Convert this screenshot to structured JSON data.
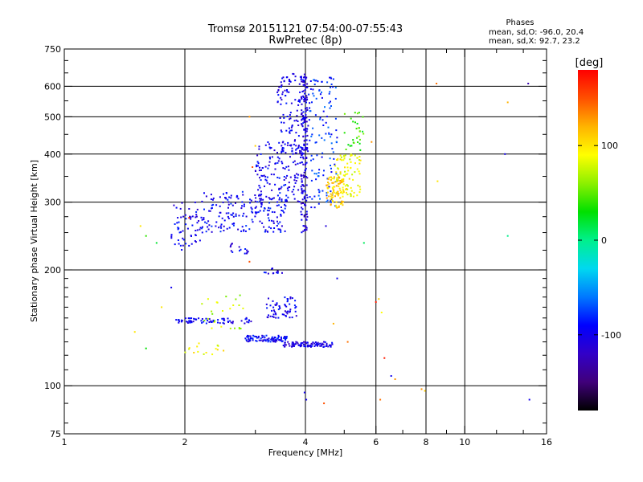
{
  "chart_data": {
    "type": "scatter",
    "title": "Tromsø 20151121 07:54:00-07:55:43",
    "subtitle": "RwPretec (8p)",
    "stats": {
      "heading": "Phases",
      "line_o": "mean, sd,O: -96.0, 20.4",
      "line_x": "mean, sd,X:  92.7, 23.2"
    },
    "xlabel": "Frequency [MHz]",
    "ylabel": "Stationary phase Virtual Height [km]",
    "x_scale": "log",
    "y_scale": "log",
    "xlim": [
      1,
      16
    ],
    "ylim": [
      75,
      750
    ],
    "grid": true,
    "x_major_ticks": [
      1,
      2,
      4,
      6,
      8,
      10,
      16
    ],
    "x_major_labels": [
      "1",
      "2",
      "4",
      "6",
      "8",
      "10",
      "16"
    ],
    "x_minor_ticks": [
      3,
      5,
      7,
      9,
      12,
      14
    ],
    "y_major_ticks": [
      75,
      100,
      200,
      300,
      400,
      500,
      600,
      750
    ],
    "y_major_labels": [
      "75",
      "100",
      "200",
      "300",
      "400",
      "500",
      "600",
      "750"
    ],
    "y_minor_ticks": [
      80,
      90,
      110,
      120,
      130,
      140,
      150,
      160,
      170,
      180,
      190,
      225,
      250,
      275,
      350,
      450,
      550,
      650,
      700
    ],
    "colorbar": {
      "label": "[deg]",
      "range": [
        -180,
        180
      ],
      "ticks": [
        100,
        0,
        -100
      ],
      "tick_labels": [
        "100",
        "0",
        "-100"
      ],
      "colormap": [
        "#000000",
        "#40007a",
        "#3200c8",
        "#0000ff",
        "#0078ff",
        "#00d8f0",
        "#00f08c",
        "#00e000",
        "#8cf000",
        "#ffff00",
        "#ffb400",
        "#ff5000",
        "#ff0000"
      ]
    },
    "clusters": [
      {
        "f": [
          1.85,
          2.2
        ],
        "h": [
          225,
          300
        ],
        "phase": -100,
        "n": 60
      },
      {
        "f": [
          2.2,
          3.6
        ],
        "h": [
          250,
          320
        ],
        "phase": -95,
        "n": 200
      },
      {
        "f": [
          3.0,
          4.0
        ],
        "h": [
          300,
          430
        ],
        "phase": -100,
        "n": 140
      },
      {
        "f": [
          3.4,
          4.1
        ],
        "h": [
          400,
          650
        ],
        "phase": -100,
        "n": 140
      },
      {
        "f": [
          3.9,
          4.05
        ],
        "h": [
          250,
          640
        ],
        "phase": -105,
        "n": 150
      },
      {
        "f": [
          4.1,
          4.8
        ],
        "h": [
          290,
          640
        ],
        "phase": -80,
        "n": 120
      },
      {
        "f": [
          4.5,
          5.0
        ],
        "h": [
          290,
          350
        ],
        "phase": 110,
        "n": 90
      },
      {
        "f": [
          4.7,
          5.5
        ],
        "h": [
          310,
          400
        ],
        "phase": 90,
        "n": 80
      },
      {
        "f": [
          5.0,
          5.6
        ],
        "h": [
          400,
          520
        ],
        "phase": 40,
        "n": 30
      },
      {
        "f": [
          2.6,
          2.9
        ],
        "h": [
          220,
          235
        ],
        "phase": -100,
        "n": 15
      },
      {
        "f": [
          3.1,
          3.5
        ],
        "h": [
          195,
          202
        ],
        "phase": -100,
        "n": 12
      },
      {
        "f": [
          1.9,
          3.0
        ],
        "h": [
          145,
          150
        ],
        "phase": -100,
        "n": 70
      },
      {
        "f": [
          2.8,
          3.6
        ],
        "h": [
          130,
          135
        ],
        "phase": -95,
        "n": 90
      },
      {
        "f": [
          3.5,
          4.7
        ],
        "h": [
          126,
          130
        ],
        "phase": -105,
        "n": 90
      },
      {
        "f": [
          3.2,
          3.8
        ],
        "h": [
          150,
          170
        ],
        "phase": -100,
        "n": 60
      },
      {
        "f": [
          2.2,
          2.8
        ],
        "h": [
          140,
          175
        ],
        "phase": 70,
        "n": 25
      },
      {
        "f": [
          2.0,
          2.5
        ],
        "h": [
          120,
          130
        ],
        "phase": 90,
        "n": 15
      }
    ],
    "scattered": [
      {
        "f": 1.55,
        "h": 260,
        "phase": 100
      },
      {
        "f": 1.6,
        "h": 245,
        "phase": 40
      },
      {
        "f": 1.7,
        "h": 235,
        "phase": 20
      },
      {
        "f": 1.5,
        "h": 138,
        "phase": 100
      },
      {
        "f": 1.6,
        "h": 125,
        "phase": 30
      },
      {
        "f": 1.75,
        "h": 160,
        "phase": 100
      },
      {
        "f": 1.85,
        "h": 180,
        "phase": -100
      },
      {
        "f": 2.05,
        "h": 273,
        "phase": 170
      },
      {
        "f": 2.9,
        "h": 500,
        "phase": 130
      },
      {
        "f": 2.95,
        "h": 370,
        "phase": 150
      },
      {
        "f": 3.0,
        "h": 420,
        "phase": 110
      },
      {
        "f": 2.9,
        "h": 210,
        "phase": 150
      },
      {
        "f": 4.5,
        "h": 260,
        "phase": -110
      },
      {
        "f": 4.8,
        "h": 190,
        "phase": -100
      },
      {
        "f": 5.6,
        "h": 235,
        "phase": 10
      },
      {
        "f": 5.85,
        "h": 430,
        "phase": 130
      },
      {
        "f": 6.0,
        "h": 165,
        "phase": 170
      },
      {
        "f": 6.1,
        "h": 168,
        "phase": 110
      },
      {
        "f": 6.2,
        "h": 155,
        "phase": 90
      },
      {
        "f": 6.3,
        "h": 118,
        "phase": 170
      },
      {
        "f": 6.55,
        "h": 106,
        "phase": -100
      },
      {
        "f": 6.7,
        "h": 104,
        "phase": 130
      },
      {
        "f": 7.8,
        "h": 98,
        "phase": 130
      },
      {
        "f": 7.95,
        "h": 97,
        "phase": 110
      },
      {
        "f": 6.15,
        "h": 92,
        "phase": 140
      },
      {
        "f": 8.5,
        "h": 610,
        "phase": 140
      },
      {
        "f": 8.55,
        "h": 340,
        "phase": 100
      },
      {
        "f": 12.8,
        "h": 545,
        "phase": 120
      },
      {
        "f": 12.8,
        "h": 245,
        "phase": 0
      },
      {
        "f": 12.6,
        "h": 400,
        "phase": -100
      },
      {
        "f": 14.4,
        "h": 610,
        "phase": -130
      },
      {
        "f": 14.5,
        "h": 92,
        "phase": -100
      },
      {
        "f": 3.98,
        "h": 96,
        "phase": -100
      },
      {
        "f": 4.02,
        "h": 92,
        "phase": -100
      },
      {
        "f": 4.45,
        "h": 90,
        "phase": 150
      },
      {
        "f": 4.7,
        "h": 145,
        "phase": 120
      },
      {
        "f": 5.1,
        "h": 130,
        "phase": 140
      }
    ]
  }
}
